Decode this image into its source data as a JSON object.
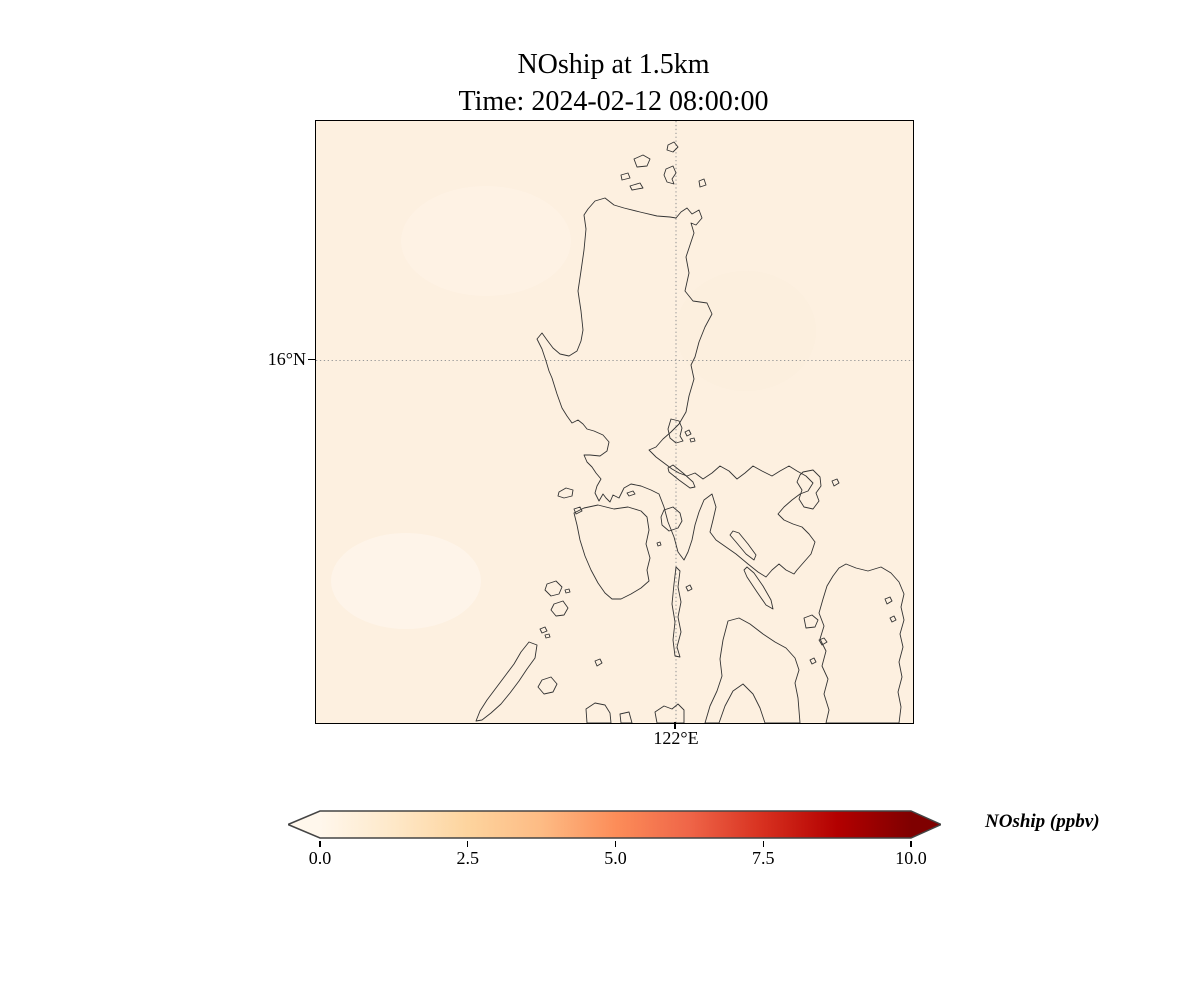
{
  "figure": {
    "title_line1": "NOship at 1.5km",
    "title_line2": "Time: 2024-02-12 08:00:00"
  },
  "map": {
    "background_color": "#fdf0e0",
    "coastline_color": "#333333",
    "gridline_color": "#999999",
    "lat_gridline_label": "16°N",
    "lon_gridline_label": "122°E",
    "coastline_paths": [
      "M272,88 L279,80 L289,77 L298,84 L308,87 L324,91 L341,95 L354,96 L360,97 L365,91 L371,87 L376,93 L383,89 L386,97 L380,104 L375,102 L378,112 L375,121 L370,136 L373,152 L369,170 L377,180 L391,182 L396,193 L389,206 L383,221 L379,236 L375,244 L378,258 L373,275 L370,291 L363,303 L355,311 L347,318 L340,326 L333,329 L340,336 L348,342 L356,348 L363,352 L371,355 L379,352 L387,358 L396,352 L404,345 L413,350 L421,358 L429,352 L437,345 L446,350 L456,355 L464,350 L473,345 L481,350 L490,355 L497,362 L492,370 L484,373 L476,379 L468,386 L462,393 L468,399 L477,403 L486,406 L493,413 L499,421 L495,433 L488,441 L481,449 L478,453 L470,449 L463,443 L456,449 L450,456 L442,451 L432,443 L420,433 L410,426 L400,419 L394,411 L397,399 L400,386 L396,373 L388,379 L383,391 L379,404 L376,419 L372,431 L368,439 L362,431 L358,416 L352,401 L348,386 L343,373 L335,369 L325,365 L315,363 L308,367 L303,377 L297,374 L294,381 L290,377 L287,373 L283,380 L279,372 L281,365 L285,358 L280,352 L276,346 L271,341 L268,334 L274,334 L284,335 L291,330 L293,321 L287,314 L278,310 L271,308 L267,303 L262,299 L256,302 L251,295 L246,287 L241,273 L236,257 L233,250 L230,240 L226,228 L221,218 L226,212 L231,219 L237,227 L244,233 L253,235 L261,230 L265,220 L267,209 L265,190 L262,170 L265,150 L268,129 L270,108 L268,94 Z",
      "M352,24 L358,21 L362,26 L357,31 L351,29 Z",
      "M318,38 L327,34 L334,38 L331,45 L321,46 Z",
      "M305,54 L312,52 L314,57 L306,59 Z",
      "M314,65 L324,62 L327,67 L316,69 Z",
      "M350,48 L357,45 L360,52 L356,58 L358,63 L351,61 L348,54 Z",
      "M383,60 L388,58 L390,64 L384,66 Z",
      "M355,298 L363,300 L366,307 L364,315 L367,320 L360,322 L354,317 L352,308 Z",
      "M369,311 l4,-2 l2,4 l-4,2 Z",
      "M374,318 l4,-1 l1,3 l-4,1 Z",
      "M352,347 L357,344 L367,352 L377,361 L379,366 L374,367 L363,359 L353,351 Z",
      "M487,351 L497,349 L504,356 L505,365 L500,372 L503,380 L497,388 L488,386 L483,378 L486,369 L481,361 L484,354 Z",
      "M516,360 l5,-2 l2,4 l-5,3 Z",
      "M348,389 L357,386 L364,392 L366,400 L362,407 L353,410 L346,404 L345,396 Z",
      "M341,422 l3,-1 l1,3 l-3,1 Z",
      "M360,446 L364,450 L362,466 L365,481 L362,496 L365,511 L361,526 L364,536 L359,535 L357,519 L359,501 L356,483 L358,463 Z",
      "M370,466 l4,-2 l2,4 l-4,2 Z",
      "M417,410 L423,412 L432,423 L440,434 L438,439 L430,433 L420,421 L414,414 Z",
      "M431,446 L438,452 L447,465 L455,479 L457,488 L450,484 L441,471 L431,456 L428,449 Z",
      "M412,500 L423,497 L434,503 L447,513 L459,521 L470,527 L479,537 L483,549 L479,562 L482,577 L484,602 L449,602 L444,587 L437,573 L427,563 L417,570 L409,585 L403,602 L389,602 L394,585 L401,570 L406,555 L404,538 L407,519 Z",
      "M530,443 L540,447 L552,450 L565,446 L575,452 L583,461 L588,473 L585,486 L588,499 L584,513 L587,526 L583,541 L586,556 L582,571 L585,586 L583,602 L510,602 L513,589 L508,573 L512,558 L506,545 L510,530 L504,518 L508,505 L503,492 L507,478 L511,465 L517,455 L523,447 Z",
      "M569,478 l5,-2 l2,4 l-5,3 Z",
      "M574,497 l4,-2 l2,4 l-4,2 Z",
      "M488,497 L496,494 L502,499 L499,506 L490,507 Z",
      "M503,519 l5,-2 l3,4 l-5,3 Z",
      "M494,539 l4,-2 l2,4 l-4,2 Z",
      "M258,392 L268,387 L282,384 L298,388 L312,386 L325,390 L331,396 L333,409 L330,423 L334,437 L331,449 L333,460 L325,467 L315,473 L305,478 L296,478 L289,472 L282,462 L275,449 L269,435 L264,419 L261,404 Z",
      "M311,372 l6,-2 l2,3 l-6,2 Z",
      "M243,371 L250,367 L257,369 L256,375 L248,377 L242,375 Z",
      "M258,388 l6,-2 l2,4 l-6,3 Z",
      "M231,463 L240,460 L246,466 L243,473 L235,475 L229,469 Z",
      "M238,483 L247,480 L252,487 L248,494 L240,495 L235,489 Z",
      "M249,469 l4,-1 l1,3 l-4,1 Z",
      "M224,508 l5,-2 l2,4 l-5,2 Z",
      "M229,514 l4,-1 l1,3 l-4,1 Z",
      "M213,521 L221,524 L219,537 L211,548 L203,560 L194,572 L185,583 L175,592 L166,599 L160,600 L164,590 L171,579 L180,567 L189,555 L198,543 L205,531 Z",
      "M226,559 L235,556 L241,563 L237,571 L228,573 L222,566 Z",
      "M270,588 L279,582 L289,584 L294,592 L295,602 L271,602 Z",
      "M279,540 l5,-2 l2,4 l-5,3 Z",
      "M304,593 L313,591 L316,602 L305,602 Z",
      "M339,591 L348,585 L356,588 L362,583 L368,589 L368,602 L341,602 Z"
    ]
  },
  "colorbar": {
    "label": "NOship (ppbv)",
    "ticks": [
      "0.0",
      "2.5",
      "5.0",
      "7.5",
      "10.0"
    ],
    "min": 0,
    "max": 10,
    "extend": "both",
    "colormap": "OrRd",
    "stops": [
      [
        "0.000",
        "#fff7ec"
      ],
      [
        "0.125",
        "#fee8c8"
      ],
      [
        "0.250",
        "#fdd49e"
      ],
      [
        "0.375",
        "#fdbb84"
      ],
      [
        "0.500",
        "#fc8d59"
      ],
      [
        "0.625",
        "#ef6548"
      ],
      [
        "0.750",
        "#d7301f"
      ],
      [
        "0.875",
        "#b30000"
      ],
      [
        "1.000",
        "#7f0000"
      ]
    ],
    "border_color": "#444444"
  },
  "chart_data": {
    "type": "heatmap",
    "title": "NOship at 1.5km",
    "subtitle": "Time: 2024-02-12 08:00:00",
    "variable": "NOship",
    "units": "ppbv",
    "level": "1.5km",
    "timestamp": "2024-02-12 08:00:00",
    "colorbar_range": [
      0,
      10
    ],
    "colorbar_ticks": [
      0.0,
      2.5,
      5.0,
      7.5,
      10.0
    ],
    "colormap": "OrRd",
    "gridlines": {
      "lat": [
        16
      ],
      "lon": [
        122
      ],
      "style": "dotted"
    },
    "field_summary": "Concentration field is near-uniform at approximately 0-0.5 ppbv (pale cream) over the entire domain; coastlines of Luzon and surrounding Philippine islands are overlaid with no visible ship-plume hotspots"
  }
}
